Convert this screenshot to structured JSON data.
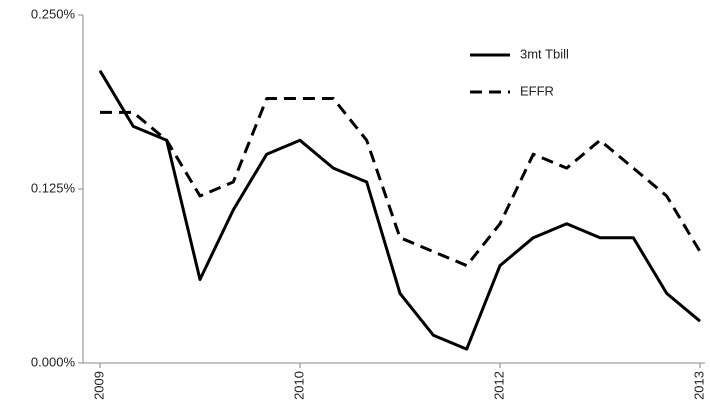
{
  "chart_data": {
    "type": "line",
    "categories": [
      "2009",
      null,
      null,
      null,
      null,
      null,
      "2010",
      null,
      null,
      null,
      null,
      null,
      "2012",
      null,
      null,
      null,
      null,
      null,
      "2013"
    ],
    "series": [
      {
        "name": "3mt Tbill",
        "color": "#000000",
        "line_style": "solid",
        "values": [
          0.21,
          0.17,
          0.16,
          0.06,
          0.11,
          0.15,
          0.16,
          0.14,
          0.13,
          0.05,
          0.02,
          0.01,
          0.07,
          0.09,
          0.1,
          0.09,
          0.09,
          0.05,
          0.03
        ]
      },
      {
        "name": "EFFR",
        "color": "#000000",
        "line_style": "dashed",
        "values": [
          0.18,
          0.18,
          0.16,
          0.12,
          0.13,
          0.19,
          0.19,
          0.19,
          0.16,
          0.09,
          0.08,
          0.07,
          0.1,
          0.15,
          0.14,
          0.16,
          0.14,
          0.12,
          0.08
        ]
      }
    ],
    "ylim": [
      0,
      0.25
    ],
    "yticks": [
      {
        "value": 0,
        "label": "0.000%"
      },
      {
        "value": 0.125,
        "label": "0.125%"
      },
      {
        "value": 0.25,
        "label": "0.250%"
      }
    ],
    "legend": "top-right"
  }
}
